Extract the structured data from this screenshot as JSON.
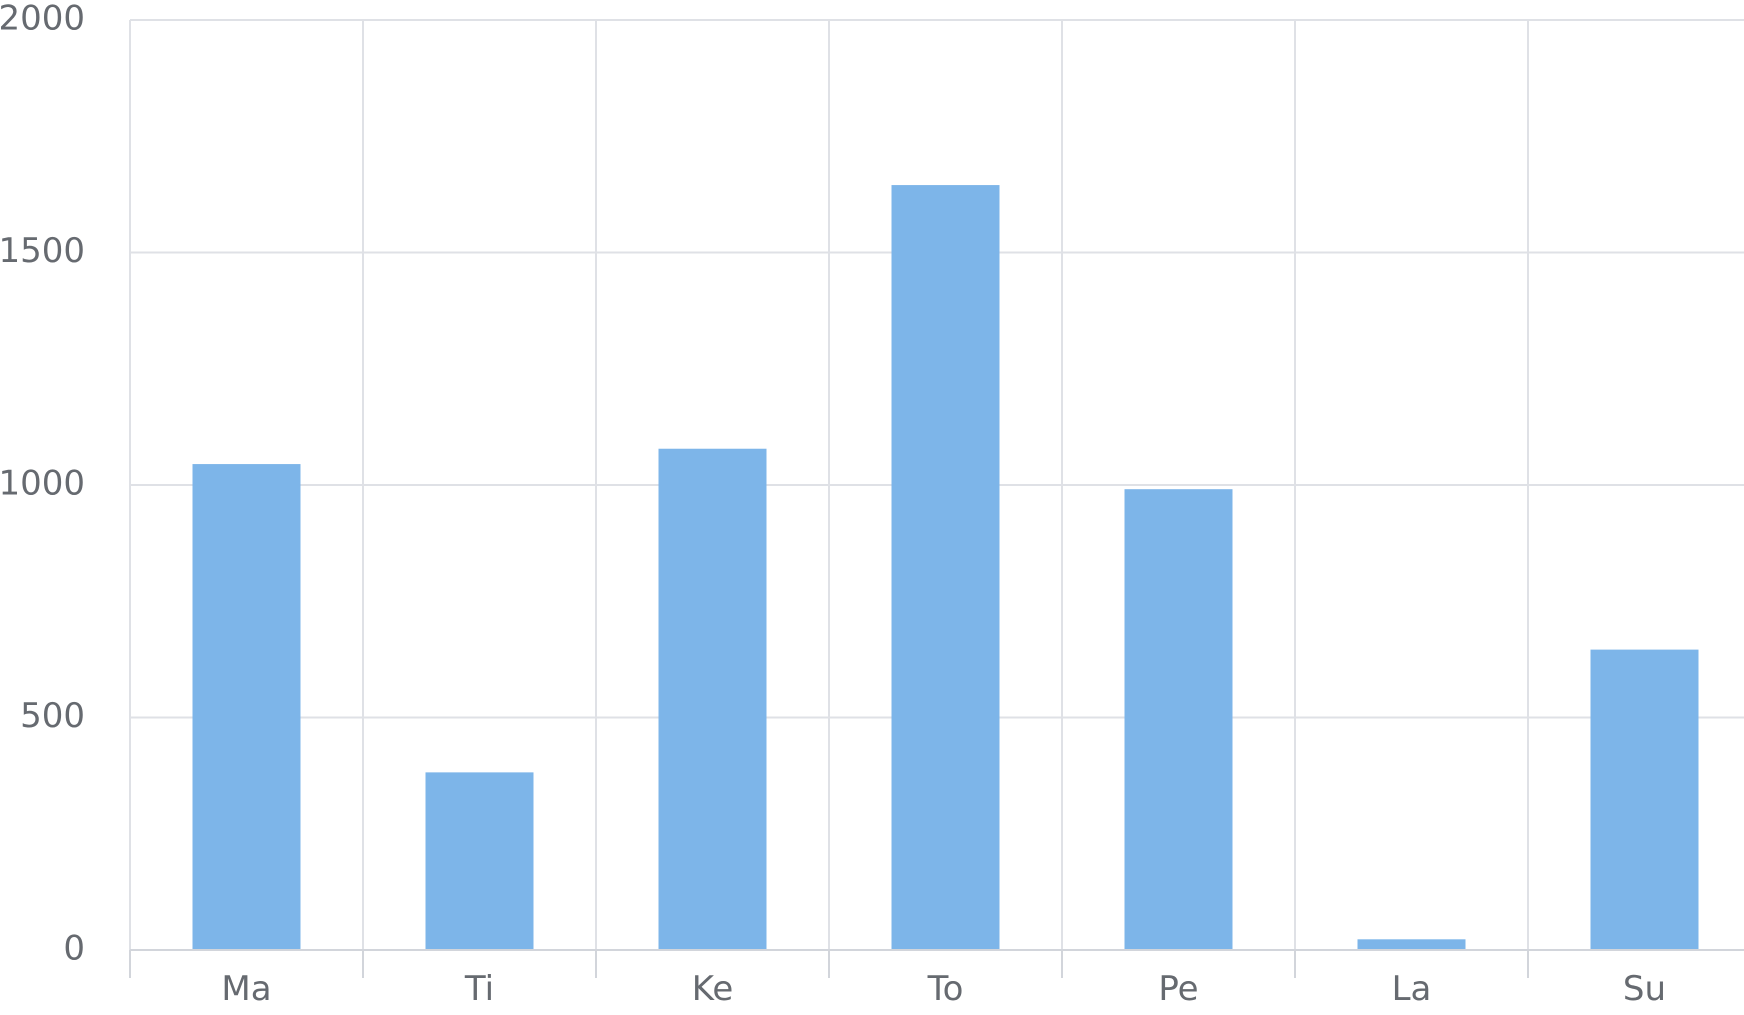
{
  "chart_data": {
    "type": "bar",
    "categories": [
      "Ma",
      "Ti",
      "Ke",
      "To",
      "Pe",
      "La",
      "Su"
    ],
    "values": [
      1045,
      382,
      1078,
      1645,
      991,
      23,
      646
    ],
    "ylim": [
      0,
      2000
    ],
    "yticks": [
      0,
      500,
      1000,
      1500,
      2000
    ],
    "ytick_labels": [
      "0",
      "500",
      "1000",
      "1500",
      "2000"
    ],
    "grid": true,
    "bar_color": "#7db5e9",
    "title": "",
    "xlabel": "",
    "ylabel": ""
  }
}
